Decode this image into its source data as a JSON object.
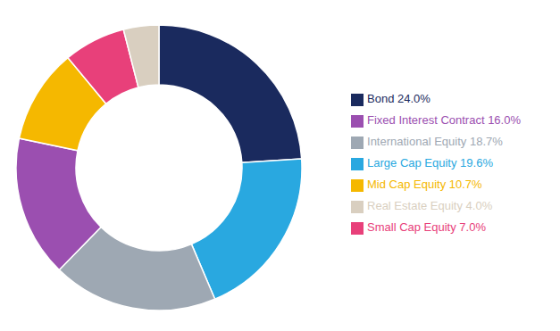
{
  "chart_data": {
    "type": "pie",
    "categories": [
      "Bond 24.0%",
      "Large Cap Equity 19.6%",
      "International Equity 18.7%",
      "Fixed Interest Contract 16.0%",
      "Mid Cap Equity 10.7%",
      "Small Cap Equity 7.0%",
      "Real Estate Equity 4.0%"
    ],
    "values": [
      24.0,
      19.6,
      18.7,
      16.0,
      10.7,
      7.0,
      4.0
    ],
    "colors": [
      "#1a2a5e",
      "#29a8e0",
      "#9ea8b3",
      "#9b4fb0",
      "#f5b800",
      "#e8407a",
      "#d9cfc0"
    ],
    "legend": "right"
  }
}
